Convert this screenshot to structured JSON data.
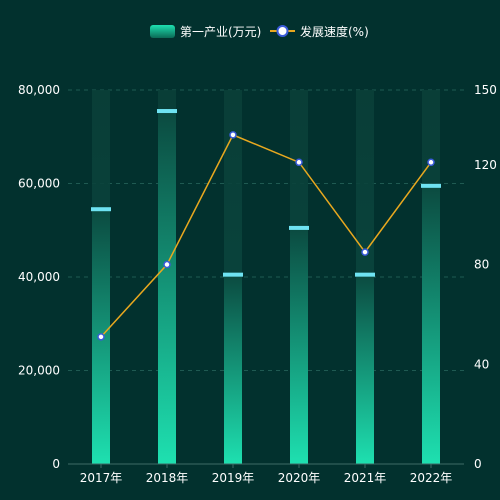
{
  "chart_data": {
    "type": "bar",
    "categories": [
      "2017年",
      "2018年",
      "2019年",
      "2020年",
      "2021年",
      "2022年"
    ],
    "series": [
      {
        "name": "第一产业(万元)",
        "type": "bar",
        "axis": "left",
        "values": [
          54500,
          75500,
          40500,
          50500,
          40500,
          59500
        ],
        "color_top": "#0b4a40",
        "color_bottom": "#1ee0b0",
        "marker_color": "#6fe3f2"
      },
      {
        "name": "发展速度(%)",
        "type": "line",
        "axis": "right",
        "values": [
          51,
          80,
          132,
          121,
          85,
          121
        ],
        "color": "#e8a81f",
        "marker_fill": "#ffffff",
        "marker_stroke": "#3a5bd9"
      }
    ],
    "y_left": {
      "min": 0,
      "max": 80000,
      "ticks": [
        "0",
        "20,000",
        "40,000",
        "60,000",
        "80,000"
      ]
    },
    "y_right": {
      "min": 0,
      "max": 150,
      "ticks": [
        "0",
        "40",
        "80",
        "120",
        "150"
      ]
    },
    "grid": true,
    "legend_position": "top-center"
  }
}
